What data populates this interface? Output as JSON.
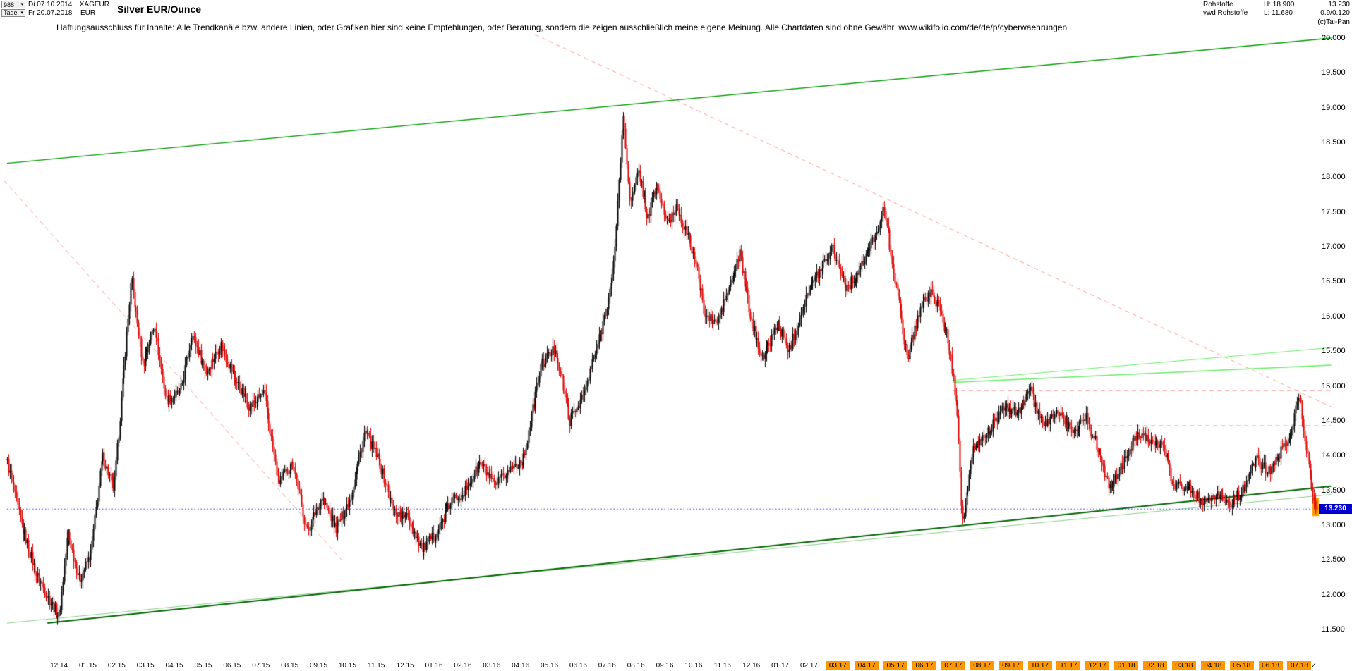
{
  "header": {
    "bars_count": "988",
    "period_label": "Tage",
    "date_from": "Di 07.10.2014",
    "date_to": "Fr 20.07.2018",
    "symbol": "XAGEUR",
    "currency": "EUR",
    "title": "Silver EUR/Ounce",
    "copyright": "(c)Tai-Pan",
    "info": {
      "line1_label": "Rohstoffe",
      "line1_high": "H: 18.900",
      "line1_value": "13.230",
      "line2_label": "vwd Rohstoffe",
      "line2_low": "L: 11.680",
      "line2_value": "0.9/0.120"
    }
  },
  "disclaimer": "Haftungsausschluss für Inhalte: Alle Trendkanäle bzw. andere Linien, oder Grafiken hier sind keine Empfehlungen, oder Beratung, sondern die zeigen ausschließlich meine eigene Meinung. Alle Chartdaten sind ohne Gewähr.  www.wikifolio.com/de/de/p/cyberwaehrungen",
  "colors": {
    "candle_up": "#000000",
    "candle_down": "#dd0000",
    "orange": "#ff9800",
    "tag_blue": "#0000cc",
    "last_price_blue": "#2222ff"
  },
  "chart_data": {
    "type": "candlestick",
    "title": "Silver EUR/Ounce",
    "instrument": "XAGEUR",
    "timeframe": "Tage",
    "range_from": "07.10.2014",
    "range_to": "20.07.2018",
    "bars": 988,
    "months_total": 45.4,
    "ylim": [
      11.5,
      20.0
    ],
    "high": 18.9,
    "low": 11.68,
    "last": 13.23,
    "last_label": "13.230",
    "y_ticks": [
      "20.000",
      "19.500",
      "19.000",
      "18.500",
      "18.000",
      "17.500",
      "17.000",
      "16.500",
      "16.000",
      "15.500",
      "15.000",
      "14.500",
      "14.000",
      "13.500",
      "13.000",
      "12.500",
      "12.000",
      "11.500"
    ],
    "x_ticks": [
      "12.14",
      "01.15",
      "02.15",
      "03.15",
      "04.15",
      "05.15",
      "06.15",
      "07.15",
      "08.15",
      "09.15",
      "10.15",
      "11.15",
      "12.15",
      "01.16",
      "02.16",
      "03.16",
      "04.16",
      "05.16",
      "06.16",
      "07.16",
      "08.16",
      "09.16",
      "10.16",
      "11.16",
      "12.16",
      "01.17",
      "02.17",
      "03.17",
      "04.17",
      "05.17",
      "06.17",
      "07.17",
      "08.17",
      "09.17",
      "10.17",
      "11.17",
      "12.17",
      "01.18",
      "02.18",
      "03.18",
      "04.18",
      "05.18",
      "06.18",
      "07.18",
      "Z"
    ],
    "x_highlight_from": "03.17",
    "price_path_monthly": [
      [
        0,
        13.9
      ],
      [
        0.5,
        13.0
      ],
      [
        1,
        12.3
      ],
      [
        1.5,
        11.9
      ],
      [
        1.8,
        11.68
      ],
      [
        2.1,
        12.9
      ],
      [
        2.5,
        12.2
      ],
      [
        2.9,
        12.6
      ],
      [
        3.3,
        14.0
      ],
      [
        3.7,
        13.5
      ],
      [
        4.3,
        16.55
      ],
      [
        4.7,
        15.3
      ],
      [
        5.1,
        15.9
      ],
      [
        5.5,
        14.8
      ],
      [
        6.0,
        14.9
      ],
      [
        6.4,
        15.75
      ],
      [
        6.9,
        15.2
      ],
      [
        7.4,
        15.6
      ],
      [
        7.9,
        15.1
      ],
      [
        8.4,
        14.7
      ],
      [
        8.9,
        14.9
      ],
      [
        9.4,
        13.6
      ],
      [
        9.9,
        13.9
      ],
      [
        10.4,
        12.9
      ],
      [
        10.9,
        13.4
      ],
      [
        11.4,
        12.95
      ],
      [
        11.9,
        13.4
      ],
      [
        12.4,
        14.35
      ],
      [
        12.9,
        13.9
      ],
      [
        13.4,
        13.2
      ],
      [
        13.9,
        13.1
      ],
      [
        14.4,
        12.65
      ],
      [
        14.9,
        12.9
      ],
      [
        15.4,
        13.35
      ],
      [
        15.9,
        13.5
      ],
      [
        16.4,
        13.9
      ],
      [
        16.9,
        13.55
      ],
      [
        17.4,
        13.8
      ],
      [
        17.9,
        13.95
      ],
      [
        18.5,
        15.3
      ],
      [
        19.0,
        15.55
      ],
      [
        19.5,
        14.5
      ],
      [
        20.0,
        14.9
      ],
      [
        20.6,
        15.8
      ],
      [
        21.0,
        16.6
      ],
      [
        21.35,
        18.9
      ],
      [
        21.6,
        17.6
      ],
      [
        21.9,
        18.1
      ],
      [
        22.2,
        17.4
      ],
      [
        22.5,
        17.9
      ],
      [
        22.9,
        17.3
      ],
      [
        23.2,
        17.6
      ],
      [
        23.8,
        16.9
      ],
      [
        24.2,
        16.0
      ],
      [
        24.6,
        15.9
      ],
      [
        25.1,
        16.5
      ],
      [
        25.4,
        16.9
      ],
      [
        25.8,
        15.9
      ],
      [
        26.2,
        15.4
      ],
      [
        26.7,
        15.9
      ],
      [
        27.1,
        15.5
      ],
      [
        27.7,
        16.3
      ],
      [
        28.2,
        16.7
      ],
      [
        28.6,
        17.0
      ],
      [
        29.1,
        16.4
      ],
      [
        29.6,
        16.7
      ],
      [
        30.1,
        17.2
      ],
      [
        30.4,
        17.55
      ],
      [
        30.9,
        16.2
      ],
      [
        31.2,
        15.4
      ],
      [
        31.7,
        16.2
      ],
      [
        32.1,
        16.35
      ],
      [
        32.6,
        15.7
      ],
      [
        32.95,
        14.6
      ],
      [
        33.1,
        13.0
      ],
      [
        33.5,
        14.1
      ],
      [
        34.0,
        14.35
      ],
      [
        34.6,
        14.7
      ],
      [
        35.1,
        14.6
      ],
      [
        35.4,
        15.0
      ],
      [
        35.9,
        14.4
      ],
      [
        36.4,
        14.65
      ],
      [
        36.9,
        14.35
      ],
      [
        37.4,
        14.55
      ],
      [
        37.9,
        14.0
      ],
      [
        38.2,
        13.5
      ],
      [
        38.7,
        13.9
      ],
      [
        39.2,
        14.35
      ],
      [
        39.7,
        14.2
      ],
      [
        40.1,
        14.1
      ],
      [
        40.4,
        13.6
      ],
      [
        40.9,
        13.55
      ],
      [
        41.4,
        13.35
      ],
      [
        41.9,
        13.45
      ],
      [
        42.4,
        13.3
      ],
      [
        42.9,
        13.55
      ],
      [
        43.3,
        13.95
      ],
      [
        43.7,
        13.75
      ],
      [
        44.1,
        14.0
      ],
      [
        44.5,
        14.35
      ],
      [
        44.8,
        14.9
      ],
      [
        45.0,
        14.2
      ],
      [
        45.2,
        13.6
      ],
      [
        45.4,
        13.23
      ]
    ],
    "trend_lines": [
      {
        "name": "upper-channel-line",
        "color": "#009900",
        "width": 1.3,
        "style": "solid",
        "m1": 0,
        "p1": 18.2,
        "m2": 45.9,
        "p2": 20.0
      },
      {
        "name": "lower-channel-line",
        "color": "#88cc88",
        "width": 1,
        "style": "solid",
        "m1": 0,
        "p1": 11.59,
        "m2": 45.9,
        "p2": 13.44
      },
      {
        "name": "support-trendline",
        "color": "#006600",
        "width": 2,
        "style": "solid",
        "m1": 1.4,
        "p1": 11.59,
        "m2": 45.9,
        "p2": 13.56
      },
      {
        "name": "resistance-light-1",
        "color": "#66ee66",
        "width": 1.5,
        "style": "solid",
        "m1": 32.8,
        "p1": 15.05,
        "m2": 45.9,
        "p2": 15.3
      },
      {
        "name": "resistance-light-2",
        "color": "#66ee66",
        "width": 1,
        "style": "solid",
        "m1": 32.8,
        "p1": 15.08,
        "m2": 45.9,
        "p2": 15.55
      },
      {
        "name": "downtrend-dashed-left",
        "color": "#ff9999",
        "width": 1,
        "style": "dash",
        "m1": -0.1,
        "p1": 17.95,
        "m2": 11.7,
        "p2": 12.45
      },
      {
        "name": "downtrend-dashed-main",
        "color": "#ff9999",
        "width": 1,
        "style": "dash",
        "m1": 18.3,
        "p1": 20.05,
        "m2": 45.9,
        "p2": 14.7
      },
      {
        "name": "horizontal-dashed-1",
        "color": "#ffaaaa",
        "width": 1,
        "style": "dash",
        "m1": 32.8,
        "p1": 14.93,
        "m2": 45.9,
        "p2": 14.93
      },
      {
        "name": "horizontal-dashed-2",
        "color": "#ffaaaa",
        "width": 1,
        "style": "dash",
        "m1": 36.7,
        "p1": 14.43,
        "m2": 45.9,
        "p2": 14.43
      },
      {
        "name": "last-price-line",
        "color": "#2222ff",
        "width": 1,
        "style": "dot",
        "m1": 0,
        "p1": 13.23,
        "m2": 45.4,
        "p2": 13.23
      }
    ]
  }
}
